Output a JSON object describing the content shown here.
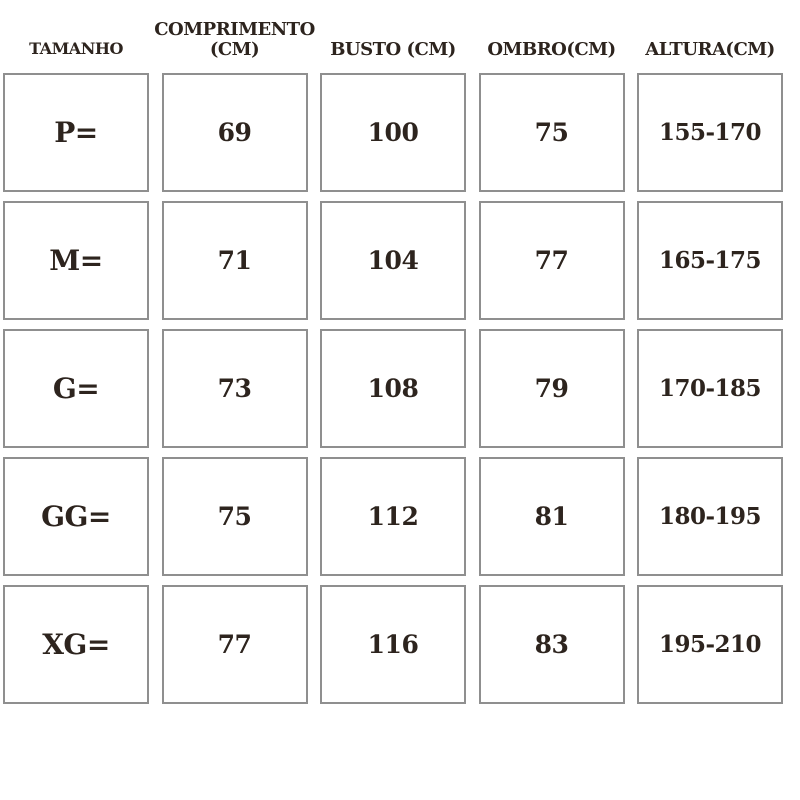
{
  "colors": {
    "text": "#2d241e",
    "border": "#8f8f8f",
    "background": "#ffffff"
  },
  "chart_data": {
    "type": "table",
    "headers": [
      "TAMANHO",
      "COMPRIMENTO (CM)",
      "BUSTO (CM)",
      "OMBRO(CM)",
      "ALTURA(CM)"
    ],
    "rows": [
      [
        "P=",
        "69",
        "100",
        "75",
        "155-170"
      ],
      [
        "M=",
        "71",
        "104",
        "77",
        "165-175"
      ],
      [
        "G=",
        "73",
        "108",
        "79",
        "170-185"
      ],
      [
        "GG=",
        "75",
        "112",
        "81",
        "180-195"
      ],
      [
        "XG=",
        "77",
        "116",
        "83",
        "195-210"
      ]
    ]
  }
}
